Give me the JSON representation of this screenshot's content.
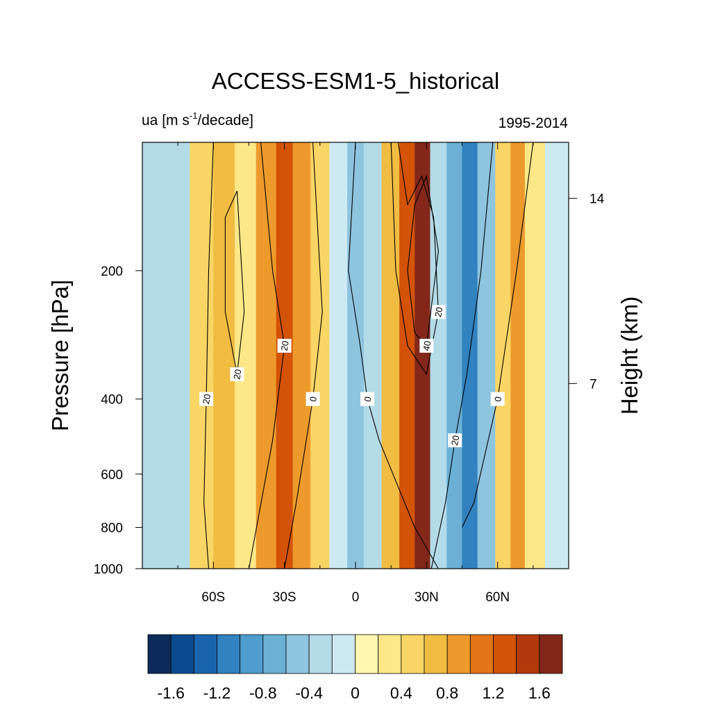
{
  "chart_data": {
    "type": "heatmap",
    "title": "ACCESS-ESM1-5_historical",
    "variable_label": "ua [m s",
    "variable_label_sup": "-1",
    "variable_label_tail": "/decade]",
    "period_label": "1995-2014",
    "ylabel": "Pressure [hPa]",
    "ylabel_right": "Height (km)",
    "x_ticks": [
      {
        "value": -60,
        "label": "60S"
      },
      {
        "value": -30,
        "label": "30S"
      },
      {
        "value": 0,
        "label": "0"
      },
      {
        "value": 30,
        "label": "30N"
      },
      {
        "value": 60,
        "label": "60N"
      }
    ],
    "xlim": [
      -90,
      90
    ],
    "y_scale": "log",
    "ylim": [
      1000,
      100
    ],
    "y_ticks": [
      {
        "value": 200,
        "label": "200"
      },
      {
        "value": 400,
        "label": "400"
      },
      {
        "value": 600,
        "label": "600"
      },
      {
        "value": 800,
        "label": "800"
      },
      {
        "value": 1000,
        "label": "1000"
      }
    ],
    "y2_ticks": [
      {
        "value": 14,
        "label": "14"
      },
      {
        "value": 7,
        "label": "7"
      }
    ],
    "trend_bands": [
      {
        "lat": -88,
        "trend": -0.3
      },
      {
        "lat": -75,
        "trend": -0.4
      },
      {
        "lat": -65,
        "trend": 0.4
      },
      {
        "lat": -55,
        "trend": 0.7
      },
      {
        "lat": -47,
        "trend": 0.3
      },
      {
        "lat": -37,
        "trend": 0.9
      },
      {
        "lat": -30,
        "trend": 1.3
      },
      {
        "lat": -23,
        "trend": 0.9
      },
      {
        "lat": -15,
        "trend": 0.4
      },
      {
        "lat": -7,
        "trend": -0.2
      },
      {
        "lat": 0,
        "trend": -0.5
      },
      {
        "lat": 7,
        "trend": -0.3
      },
      {
        "lat": 15,
        "trend": 0.6
      },
      {
        "lat": 22,
        "trend": 1.3
      },
      {
        "lat": 28,
        "trend": 1.7
      },
      {
        "lat": 35,
        "trend": -0.3
      },
      {
        "lat": 42,
        "trend": -0.8
      },
      {
        "lat": 48,
        "trend": -1.1
      },
      {
        "lat": 55,
        "trend": -0.5
      },
      {
        "lat": 63,
        "trend": 0.5
      },
      {
        "lat": 68,
        "trend": 0.9
      },
      {
        "lat": 75,
        "trend": 0.3
      },
      {
        "lat": 85,
        "trend": -0.1
      }
    ],
    "climatology_contours": [
      {
        "value": "20",
        "points": [
          [
            -60,
            100
          ],
          [
            -62,
            200
          ],
          [
            -63,
            400
          ],
          [
            -64,
            700
          ],
          [
            -62,
            1000
          ]
        ]
      },
      {
        "value": "20",
        "points": [
          [
            -55,
            150
          ],
          [
            -50,
            130
          ],
          [
            -47,
            250
          ],
          [
            -50,
            350
          ],
          [
            -55,
            250
          ],
          [
            -55,
            150
          ]
        ]
      },
      {
        "value": "20",
        "points": [
          [
            -40,
            100
          ],
          [
            -35,
            200
          ],
          [
            -30,
            300
          ],
          [
            -35,
            500
          ],
          [
            -45,
            1000
          ]
        ]
      },
      {
        "value": "0",
        "points": [
          [
            -18,
            100
          ],
          [
            -14,
            250
          ],
          [
            -18,
            400
          ],
          [
            -25,
            700
          ],
          [
            -30,
            1000
          ]
        ]
      },
      {
        "value": "0",
        "points": [
          [
            0,
            100
          ],
          [
            -3,
            200
          ],
          [
            2,
            300
          ],
          [
            5,
            400
          ],
          [
            10,
            500
          ],
          [
            25,
            800
          ],
          [
            35,
            1000
          ]
        ]
      },
      {
        "value": "20",
        "points": [
          [
            15,
            100
          ],
          [
            17,
            200
          ],
          [
            22,
            300
          ],
          [
            30,
            350
          ],
          [
            35,
            250
          ],
          [
            33,
            150
          ],
          [
            28,
            120
          ],
          [
            22,
            140
          ],
          [
            18,
            100
          ]
        ]
      },
      {
        "value": "40",
        "points": [
          [
            25,
            140
          ],
          [
            30,
            120
          ],
          [
            35,
            180
          ],
          [
            30,
            300
          ],
          [
            25,
            280
          ],
          [
            22,
            200
          ],
          [
            25,
            140
          ]
        ]
      },
      {
        "value": "20",
        "points": [
          [
            58,
            100
          ],
          [
            53,
            200
          ],
          [
            47,
            350
          ],
          [
            42,
            500
          ],
          [
            38,
            700
          ],
          [
            32,
            1000
          ]
        ]
      },
      {
        "value": "0",
        "points": [
          [
            75,
            100
          ],
          [
            68,
            200
          ],
          [
            60,
            400
          ],
          [
            50,
            700
          ],
          [
            45,
            800
          ]
        ]
      }
    ],
    "colorbar": {
      "levels": [
        -1.8,
        -1.6,
        -1.4,
        -1.2,
        -1.0,
        -0.8,
        -0.6,
        -0.4,
        -0.2,
        0,
        0.2,
        0.4,
        0.6,
        0.8,
        1.0,
        1.2,
        1.4,
        1.6,
        1.8
      ],
      "colors": [
        "#0d2b5a",
        "#0b4a8f",
        "#1a64ae",
        "#3282bf",
        "#4f9ccd",
        "#6cb0d6",
        "#8fc4df",
        "#b4dbe8",
        "#cdeaf3",
        "#fff6b0",
        "#fde889",
        "#f9d565",
        "#f0bc42",
        "#ec9a2c",
        "#e3741a",
        "#d35307",
        "#b1390b",
        "#82271a"
      ],
      "tick_labels": [
        "-1.6",
        "-1.2",
        "-0.8",
        "-0.4",
        "0",
        "0.4",
        "0.8",
        "1.2",
        "1.6"
      ],
      "tick_values": [
        -1.6,
        -1.2,
        -0.8,
        -0.4,
        0,
        0.4,
        0.8,
        1.2,
        1.6
      ]
    }
  }
}
